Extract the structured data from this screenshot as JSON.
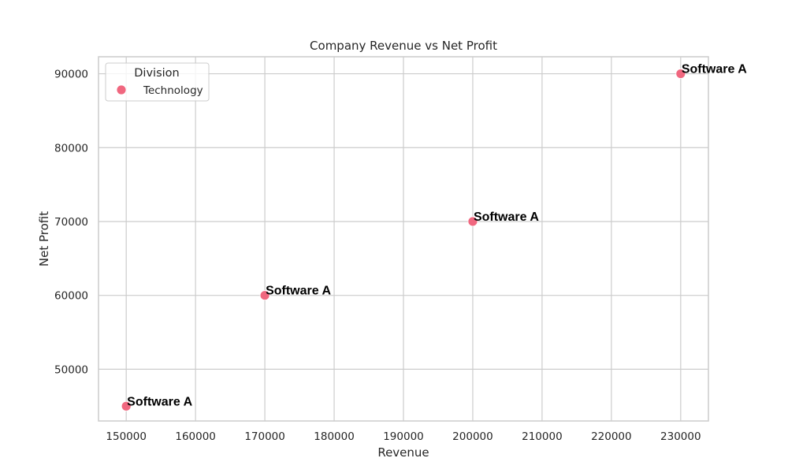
{
  "chart_data": {
    "type": "scatter",
    "title": "Company Revenue vs Net Profit",
    "xlabel": "Revenue",
    "ylabel": "Net Profit",
    "xlim": [
      146000,
      234000
    ],
    "ylim": [
      43000,
      92300
    ],
    "xticks": [
      150000,
      160000,
      170000,
      180000,
      190000,
      200000,
      210000,
      220000,
      230000
    ],
    "yticks": [
      50000,
      60000,
      70000,
      80000,
      90000
    ],
    "grid": true,
    "legend": {
      "title": "Division",
      "placement": "top-left"
    },
    "series": [
      {
        "name": "Technology",
        "color": "#f0677f",
        "points": [
          {
            "x": 150000,
            "y": 45000,
            "label": "Software A"
          },
          {
            "x": 170000,
            "y": 60000,
            "label": "Software A"
          },
          {
            "x": 200000,
            "y": 70000,
            "label": "Software A"
          },
          {
            "x": 230000,
            "y": 90000,
            "label": "Software A"
          }
        ]
      }
    ]
  }
}
